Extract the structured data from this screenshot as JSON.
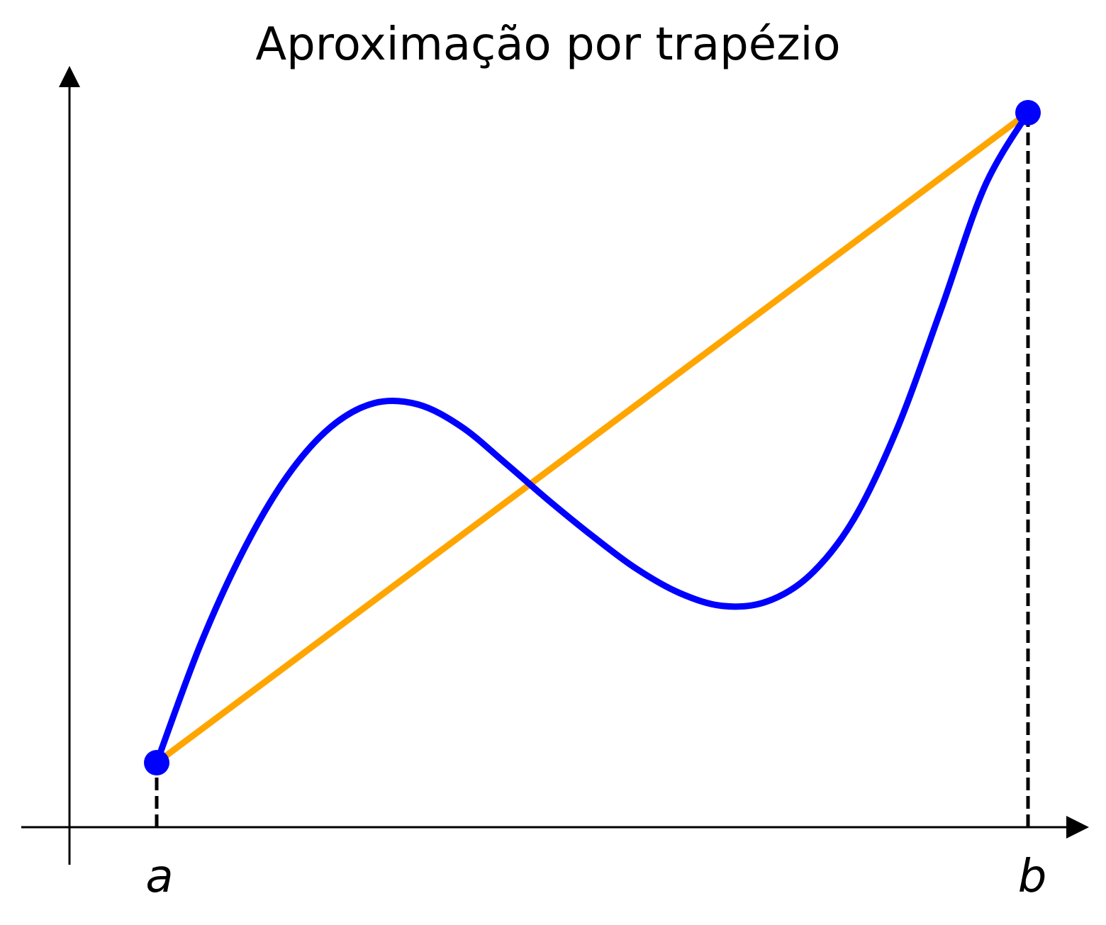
{
  "chart_data": {
    "type": "line",
    "title": "Aproximação por trapézio",
    "xlabel": "",
    "ylabel": "",
    "grid": false,
    "legend": "none",
    "xlim": [
      -0.1,
      1.06
    ],
    "ylim": [
      -0.08,
      1.0
    ],
    "x_tick_labels": [
      "a",
      "b"
    ],
    "x_ticks": [
      0,
      1
    ],
    "curve": {
      "color": "#0000ff",
      "x": [
        0,
        0.05,
        0.1,
        0.15,
        0.2,
        0.25,
        0.3,
        0.35,
        0.4,
        0.45,
        0.5,
        0.55,
        0.6,
        0.65,
        0.7,
        0.75,
        0.8,
        0.85,
        0.9,
        0.95,
        1
      ],
      "y": [
        0.1,
        0.263,
        0.395,
        0.497,
        0.565,
        0.598,
        0.596,
        0.565,
        0.515,
        0.463,
        0.414,
        0.369,
        0.335,
        0.317,
        0.323,
        0.36,
        0.437,
        0.563,
        0.727,
        0.897,
        1.0
      ]
    },
    "trapezoid_line": {
      "color": "#ffa500",
      "x": [
        0,
        1
      ],
      "y": [
        0.1,
        1.0
      ]
    },
    "endpoints": {
      "color": "#0000ff",
      "x": [
        0,
        1
      ],
      "y": [
        0.1,
        1.0
      ]
    },
    "guides": {
      "color": "#000000",
      "style": "dashed"
    }
  }
}
